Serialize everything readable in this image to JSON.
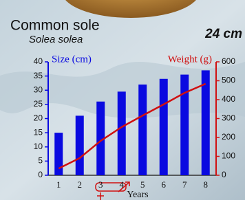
{
  "chart_data": {
    "type": "bar",
    "title": "Common sole",
    "subtitle": "Solea solea",
    "annotation": "24 cm",
    "xlabel": "Years",
    "ylabel": "Size (cm)",
    "y2label": "Weight (g)",
    "categories": [
      "1",
      "2",
      "3",
      "4",
      "5",
      "6",
      "7",
      "8"
    ],
    "series": [
      {
        "type": "bar",
        "color": "#0a0ae0",
        "values": [
          15,
          21,
          26,
          29.5,
          32,
          34,
          35.5,
          37
        ]
      },
      {
        "type": "line",
        "axis": "y2",
        "color": "#d01010",
        "values": [
          36,
          91,
          182,
          255,
          316,
          375,
          436,
          484
        ]
      }
    ],
    "ylim": [
      0,
      40
    ],
    "yticks": [
      0,
      5,
      10,
      15,
      20,
      25,
      30,
      35,
      40
    ],
    "y2lim": [
      0,
      600
    ],
    "y2ticks": [
      0,
      100,
      200,
      300,
      400,
      500,
      600
    ]
  }
}
